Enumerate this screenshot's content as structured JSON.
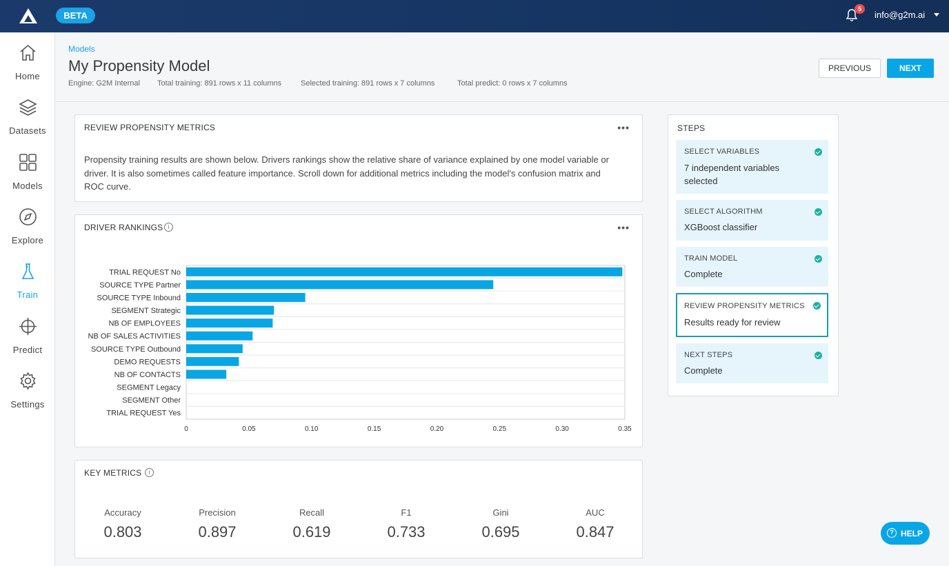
{
  "topbar": {
    "beta": "BETA",
    "notifications": "5",
    "user": "info@g2m.ai"
  },
  "sidebar": {
    "items": [
      {
        "label": "Home",
        "icon": "home-icon"
      },
      {
        "label": "Datasets",
        "icon": "layers-icon"
      },
      {
        "label": "Models",
        "icon": "grid-icon"
      },
      {
        "label": "Explore",
        "icon": "compass-icon"
      },
      {
        "label": "Train",
        "icon": "flask-icon",
        "active": true
      },
      {
        "label": "Predict",
        "icon": "crosshair-icon"
      },
      {
        "label": "Settings",
        "icon": "gear-icon"
      }
    ]
  },
  "header": {
    "breadcrumb": "Models",
    "title": "My Propensity Model",
    "engine": "Engine: G2M Internal",
    "total_training": "Total training: 891 rows x 11 columns",
    "selected_training": "Selected training: 891 rows x 7 columns",
    "total_predict": "Total predict: 0 rows x 7 columns",
    "previous": "PREVIOUS",
    "next": "NEXT"
  },
  "review": {
    "title": "REVIEW PROPENSITY METRICS",
    "text": "Propensity training results are shown below. Drivers rankings show the relative share of variance explained by one model variable or driver. It is also sometimes called feature importance. Scroll down for additional metrics including the model's confusion matrix and ROC curve."
  },
  "drivers": {
    "title": "DRIVER RANKINGS"
  },
  "chart_data": {
    "type": "bar",
    "orientation": "horizontal",
    "title": "DRIVER RANKINGS",
    "categories": [
      "TRIAL REQUEST No",
      "SOURCE TYPE Partner",
      "SOURCE TYPE Inbound",
      "SEGMENT Strategic",
      "NB OF EMPLOYEES",
      "NB OF SALES ACTIVITIES",
      "SOURCE TYPE Outbound",
      "DEMO REQUESTS",
      "NB OF CONTACTS",
      "SEGMENT Legacy",
      "SEGMENT Other",
      "TRIAL REQUEST Yes"
    ],
    "values": [
      0.348,
      0.245,
      0.095,
      0.07,
      0.069,
      0.053,
      0.045,
      0.042,
      0.032,
      0,
      0,
      0
    ],
    "xlim": [
      0,
      0.35
    ],
    "xticks": [
      "0",
      "0.05",
      "0.10",
      "0.15",
      "0.20",
      "0.25",
      "0.30",
      "0.35"
    ],
    "color": "#09a6e6",
    "grid": true
  },
  "key_metrics": {
    "title": "KEY METRICS",
    "items": [
      {
        "label": "Accuracy",
        "value": "0.803"
      },
      {
        "label": "Precision",
        "value": "0.897"
      },
      {
        "label": "Recall",
        "value": "0.619"
      },
      {
        "label": "F1",
        "value": "0.733"
      },
      {
        "label": "Gini",
        "value": "0.695"
      },
      {
        "label": "AUC",
        "value": "0.847"
      }
    ]
  },
  "steps": {
    "title": "STEPS",
    "items": [
      {
        "title": "SELECT VARIABLES",
        "value": "7 independent variables selected"
      },
      {
        "title": "SELECT ALGORITHM",
        "value": "XGBoost classifier"
      },
      {
        "title": "TRAIN MODEL",
        "value": "Complete"
      },
      {
        "title": "REVIEW PROPENSITY METRICS",
        "value": "Results ready for review",
        "active": true
      },
      {
        "title": "NEXT STEPS",
        "value": "Complete"
      }
    ]
  },
  "help": {
    "label": "HELP"
  }
}
